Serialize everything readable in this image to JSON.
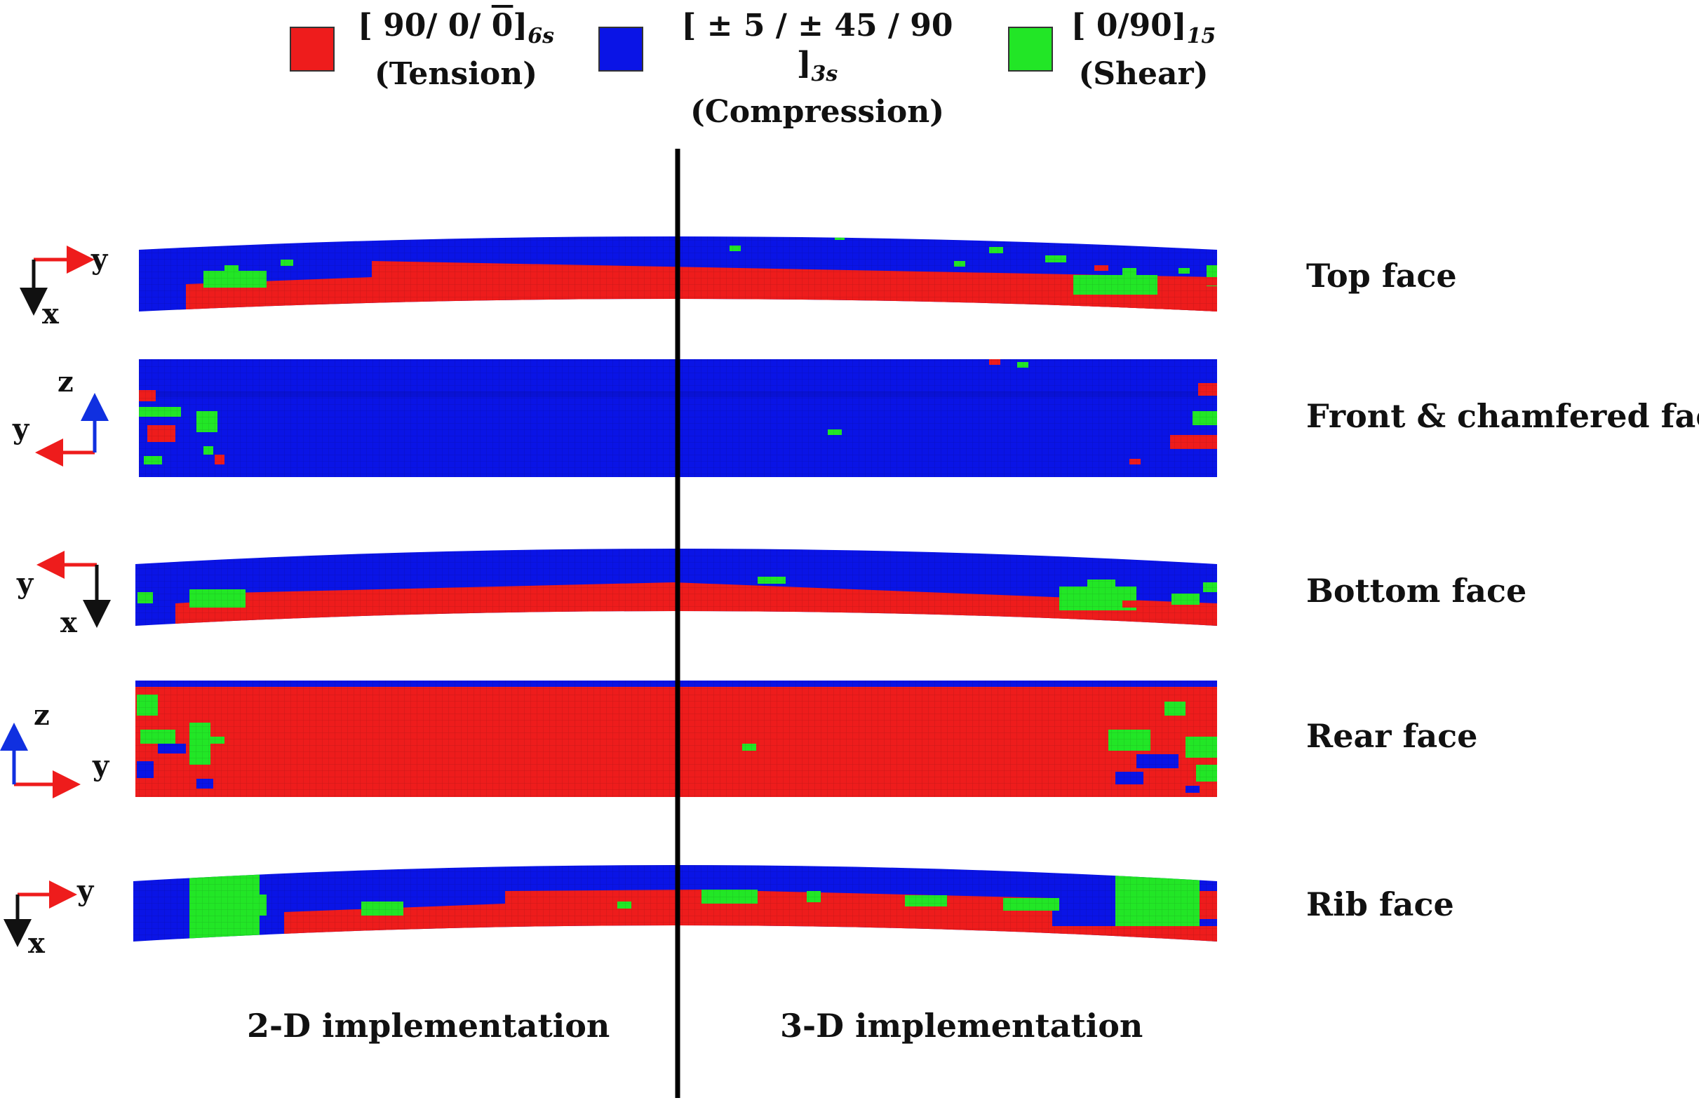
{
  "legend": [
    {
      "id": "tension",
      "layup": "[ 90/ 0/ ",
      "layup_bar": "0",
      "layup_end": "]",
      "subscript": "6s",
      "mode": "(Tension)",
      "color": "#ee1c1c"
    },
    {
      "id": "compression",
      "layup": "[ ± 5 / ± 45 / 90 ]",
      "subscript": "3s",
      "mode": "(Compression)",
      "color": "#0a14e6"
    },
    {
      "id": "shear",
      "layup": "[ 0/90]",
      "subscript": "15",
      "mode": "(Shear)",
      "color": "#22e626"
    }
  ],
  "faces": [
    {
      "label": "Top face",
      "axes": {
        "horizontal": "y",
        "vertical": "x"
      }
    },
    {
      "label": "Front & chamfered face",
      "axes": {
        "horizontal": "y",
        "vertical": "z"
      }
    },
    {
      "label": "Bottom face",
      "axes": {
        "horizontal": "y",
        "vertical": "x"
      }
    },
    {
      "label": "Rear face",
      "axes": {
        "horizontal": "y",
        "vertical": "z"
      }
    },
    {
      "label": "Rib face",
      "axes": {
        "horizontal": "y",
        "vertical": "x"
      }
    }
  ],
  "columns": {
    "left": "2-D implementation",
    "right": "3-D implementation"
  },
  "colors": {
    "tension": "#ee1c1c",
    "compression": "#0a14e6",
    "shear": "#22e626",
    "axis_red": "#ee1c1c",
    "axis_blue": "#1030e0"
  }
}
